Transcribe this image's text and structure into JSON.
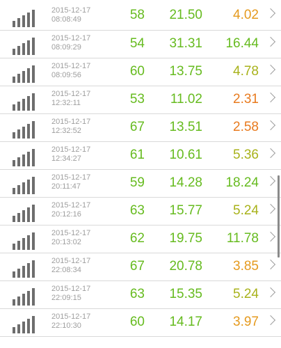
{
  "colors": {
    "green": "#66bb1f",
    "orange": "#e87a1e",
    "amber": "#e59a1e",
    "olive": "#a8b21a"
  },
  "icons": {
    "signal": "signal-strength-icon",
    "chevron": "chevron-right-icon"
  },
  "rows": [
    {
      "date": "2015-12-17",
      "time": "08:08:49",
      "v1": "58",
      "v2": "21.50",
      "v3": "4.02",
      "v3_color": "amber"
    },
    {
      "date": "2015-12-17",
      "time": "08:09:29",
      "v1": "54",
      "v2": "31.31",
      "v3": "16.44",
      "v3_color": "green"
    },
    {
      "date": "2015-12-17",
      "time": "08:09:56",
      "v1": "60",
      "v2": "13.75",
      "v3": "4.78",
      "v3_color": "olive"
    },
    {
      "date": "2015-12-17",
      "time": "12:32:11",
      "v1": "53",
      "v2": "11.02",
      "v3": "2.31",
      "v3_color": "orange"
    },
    {
      "date": "2015-12-17",
      "time": "12:32:52",
      "v1": "67",
      "v2": "13.51",
      "v3": "2.58",
      "v3_color": "orange"
    },
    {
      "date": "2015-12-17",
      "time": "12:34:27",
      "v1": "61",
      "v2": "10.61",
      "v3": "5.36",
      "v3_color": "olive"
    },
    {
      "date": "2015-12-17",
      "time": "20:11:47",
      "v1": "59",
      "v2": "14.28",
      "v3": "18.24",
      "v3_color": "green"
    },
    {
      "date": "2015-12-17",
      "time": "20:12:16",
      "v1": "63",
      "v2": "15.77",
      "v3": "5.24",
      "v3_color": "olive"
    },
    {
      "date": "2015-12-17",
      "time": "20:13:02",
      "v1": "62",
      "v2": "19.75",
      "v3": "11.78",
      "v3_color": "green"
    },
    {
      "date": "2015-12-17",
      "time": "22:08:34",
      "v1": "67",
      "v2": "20.78",
      "v3": "3.85",
      "v3_color": "amber"
    },
    {
      "date": "2015-12-17",
      "time": "22:09:15",
      "v1": "63",
      "v2": "15.35",
      "v3": "5.24",
      "v3_color": "olive"
    },
    {
      "date": "2015-12-17",
      "time": "22:10:30",
      "v1": "60",
      "v2": "14.17",
      "v3": "3.97",
      "v3_color": "amber"
    }
  ]
}
